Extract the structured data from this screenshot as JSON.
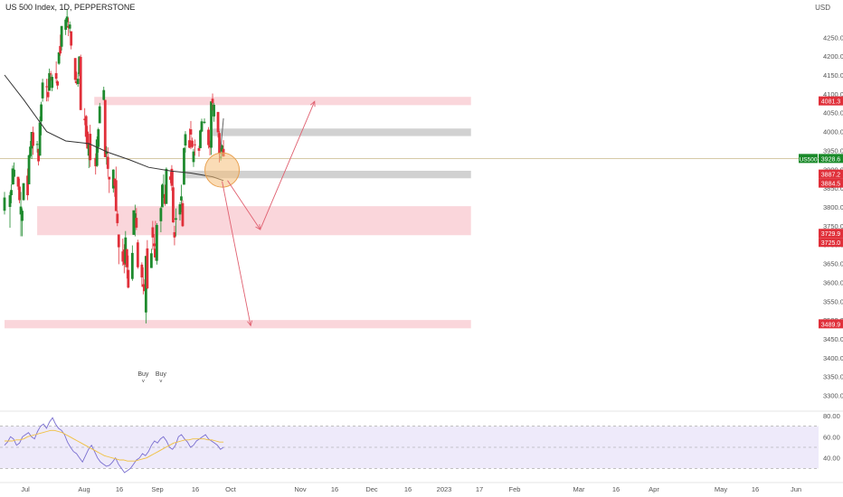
{
  "header": {
    "symbol_title": "US 500 Index, 1D, PEPPERSTONE",
    "currency": "USD"
  },
  "colors": {
    "up": "#1e8a2e",
    "down": "#e0303a",
    "ma": "#333333",
    "zone_red": "#f8c8cf",
    "zone_gray": "#c9c9c9",
    "arrow": "#e06070",
    "circle_fill": "#f5c07a",
    "rsi_line": "#7a6fd0",
    "rsi_ma": "#f0c040",
    "rsi_bg": "#eeeafa",
    "price_line": "#c9b98a",
    "last_label": "#1a8a2a",
    "level_label": "#e0303a"
  },
  "chart_data": {
    "type": "candlestick",
    "y_axis": {
      "min": 3275,
      "max": 4325,
      "ticks": [
        "4250.0",
        "4200.0",
        "4150.0",
        "4100.0",
        "4050.0",
        "4000.0",
        "3950.0",
        "3900.0",
        "3850.0",
        "3800.0",
        "3750.0",
        "3700.0",
        "3650.0",
        "3600.0",
        "3550.0",
        "3500.0",
        "3450.0",
        "3400.0",
        "3350.0",
        "3300.0"
      ]
    },
    "x_axis": {
      "ticks": [
        "Jul",
        "Aug",
        "16",
        "Sep",
        "16",
        "Oct",
        "Nov",
        "16",
        "Dec",
        "16",
        "2023",
        "17",
        "Feb",
        "Mar",
        "16",
        "Apr",
        "May",
        "16",
        "Jun"
      ]
    },
    "candles": [
      [
        "2022-07-01",
        3790,
        3840,
        3780,
        3825
      ],
      [
        "2022-07-05",
        3800,
        3840,
        3745,
        3831
      ],
      [
        "2022-07-06",
        3831,
        3860,
        3810,
        3845
      ],
      [
        "2022-07-07",
        3860,
        3910,
        3858,
        3902
      ],
      [
        "2022-07-08",
        3880,
        3918,
        3860,
        3899
      ],
      [
        "2022-07-11",
        3880,
        3880,
        3845,
        3854
      ],
      [
        "2022-07-12",
        3854,
        3875,
        3810,
        3818
      ],
      [
        "2022-07-13",
        3780,
        3840,
        3722,
        3801
      ],
      [
        "2022-07-14",
        3763,
        3796,
        3722,
        3790
      ],
      [
        "2022-07-15",
        3818,
        3863,
        3817,
        3863
      ],
      [
        "2022-07-18",
        3883,
        3902,
        3818,
        3831
      ],
      [
        "2022-07-19",
        3860,
        3939,
        3860,
        3937
      ],
      [
        "2022-07-20",
        3935,
        3975,
        3930,
        3960
      ],
      [
        "2022-07-21",
        3955,
        3999,
        3927,
        3999
      ],
      [
        "2022-07-22",
        3998,
        4013,
        3938,
        3962
      ],
      [
        "2022-07-25",
        3965,
        3975,
        3944,
        3967
      ],
      [
        "2022-07-26",
        3954,
        3954,
        3910,
        3921
      ],
      [
        "2022-07-27",
        3936,
        4040,
        3936,
        4024
      ],
      [
        "2022-07-28",
        4027,
        4079,
        3990,
        4072
      ],
      [
        "2022-07-29",
        4088,
        4140,
        4079,
        4130
      ],
      [
        "2022-08-01",
        4120,
        4140,
        4080,
        4119
      ],
      [
        "2022-08-02",
        4105,
        4140,
        4080,
        4091
      ],
      [
        "2022-08-03",
        4108,
        4167,
        4108,
        4155
      ],
      [
        "2022-08-04",
        4154,
        4161,
        4135,
        4152
      ],
      [
        "2022-08-05",
        4116,
        4151,
        4107,
        4145
      ],
      [
        "2022-08-08",
        4155,
        4186,
        4128,
        4140
      ],
      [
        "2022-08-09",
        4133,
        4137,
        4112,
        4122
      ],
      [
        "2022-08-10",
        4180,
        4211,
        4177,
        4210
      ],
      [
        "2022-08-11",
        4227,
        4257,
        4201,
        4207
      ],
      [
        "2022-08-12",
        4225,
        4280,
        4215,
        4280
      ],
      [
        "2022-08-15",
        4270,
        4301,
        4256,
        4297
      ],
      [
        "2022-08-16",
        4290,
        4325,
        4277,
        4305
      ],
      [
        "2022-08-17",
        4280,
        4302,
        4253,
        4275
      ],
      [
        "2022-08-18",
        4273,
        4292,
        4262,
        4284
      ],
      [
        "2022-08-19",
        4266,
        4266,
        4218,
        4228
      ],
      [
        "2022-08-22",
        4195,
        4195,
        4129,
        4137
      ],
      [
        "2022-08-23",
        4133,
        4159,
        4124,
        4128
      ],
      [
        "2022-08-24",
        4126,
        4156,
        4119,
        4140
      ],
      [
        "2022-08-25",
        4153,
        4200,
        4147,
        4199
      ],
      [
        "2022-08-26",
        4198,
        4204,
        4057,
        4057
      ],
      [
        "2022-08-29",
        4034,
        4062,
        4017,
        4030
      ],
      [
        "2022-08-30",
        4041,
        4044,
        3965,
        3986
      ],
      [
        "2022-08-31",
        4000,
        4015,
        3954,
        3955
      ],
      [
        "2022-09-01",
        3936,
        3970,
        3903,
        3966
      ],
      [
        "2022-09-02",
        3994,
        4018,
        3906,
        3924
      ],
      [
        "2022-09-06",
        3930,
        3942,
        3886,
        3908
      ],
      [
        "2022-09-07",
        3909,
        3987,
        3906,
        3979
      ],
      [
        "2022-09-08",
        3959,
        4010,
        3944,
        4006
      ],
      [
        "2022-09-09",
        4022,
        4076,
        4022,
        4067
      ],
      [
        "2022-09-12",
        4084,
        4119,
        4083,
        4110
      ],
      [
        "2022-09-13",
        4084,
        4084,
        3932,
        3932
      ],
      [
        "2022-09-14",
        3941,
        3961,
        3912,
        3946
      ],
      [
        "2022-09-15",
        3933,
        3958,
        3880,
        3901
      ],
      [
        "2022-09-16",
        3880,
        3880,
        3837,
        3873
      ],
      [
        "2022-09-19",
        3849,
        3900,
        3838,
        3899
      ],
      [
        "2022-09-20",
        3875,
        3876,
        3827,
        3856
      ],
      [
        "2022-09-21",
        3871,
        3907,
        3789,
        3789
      ],
      [
        "2022-09-22",
        3782,
        3790,
        3749,
        3757
      ],
      [
        "2022-09-23",
        3727,
        3727,
        3648,
        3693
      ],
      [
        "2022-09-26",
        3682,
        3716,
        3644,
        3655
      ],
      [
        "2022-09-27",
        3687,
        3701,
        3624,
        3647
      ],
      [
        "2022-09-28",
        3651,
        3736,
        3640,
        3719
      ],
      [
        "2022-09-29",
        3688,
        3688,
        3610,
        3640
      ],
      [
        "2022-09-30",
        3633,
        3671,
        3584,
        3586
      ],
      [
        "2022-10-03",
        3609,
        3698,
        3604,
        3678
      ],
      [
        "2022-10-04",
        3726,
        3791,
        3726,
        3791
      ],
      [
        "2022-10-05",
        3753,
        3806,
        3722,
        3783
      ],
      [
        "2022-10-06",
        3771,
        3797,
        3739,
        3745
      ],
      [
        "2022-10-07",
        3706,
        3713,
        3636,
        3640
      ],
      [
        "2022-10-10",
        3647,
        3653,
        3588,
        3613
      ],
      [
        "2022-10-11",
        3595,
        3640,
        3568,
        3588
      ],
      [
        "2022-10-12",
        3590,
        3608,
        3576,
        3577
      ],
      [
        "2022-10-13",
        3520,
        3666,
        3491,
        3670
      ],
      [
        "2022-10-14",
        3690,
        3712,
        3582,
        3584
      ],
      [
        "2022-10-17",
        3638,
        3689,
        3638,
        3677
      ],
      [
        "2022-10-18",
        3746,
        3763,
        3686,
        3719
      ],
      [
        "2022-10-19",
        3703,
        3728,
        3666,
        3696
      ],
      [
        "2022-10-20",
        3689,
        3763,
        3657,
        3666
      ],
      [
        "2022-10-21",
        3657,
        3757,
        3647,
        3752
      ],
      [
        "2022-10-24",
        3762,
        3801,
        3733,
        3797
      ],
      [
        "2022-10-25",
        3799,
        3862,
        3799,
        3859
      ],
      [
        "2022-10-26",
        3825,
        3886,
        3824,
        3831
      ],
      [
        "2022-10-27",
        3834,
        3859,
        3803,
        3808
      ],
      [
        "2022-10-28",
        3808,
        3905,
        3808,
        3901
      ],
      [
        "2022-10-31",
        3881,
        3893,
        3863,
        3872
      ],
      [
        "2022-11-01",
        3901,
        3911,
        3843,
        3856
      ],
      [
        "2022-11-02",
        3852,
        3894,
        3758,
        3759
      ],
      [
        "2022-11-03",
        3733,
        3750,
        3698,
        3719
      ],
      [
        "2022-11-04",
        3766,
        3796,
        3722,
        3770
      ],
      [
        "2022-11-07",
        3780,
        3813,
        3764,
        3807
      ],
      [
        "2022-11-08",
        3817,
        3859,
        3786,
        3828
      ],
      [
        "2022-11-09",
        3810,
        3818,
        3747,
        3749
      ],
      [
        "2022-11-10",
        3859,
        3958,
        3859,
        3956
      ],
      [
        "2022-11-11",
        3963,
        4001,
        3944,
        3993
      ],
      [
        "2022-11-14",
        3977,
        4008,
        3956,
        3957
      ],
      [
        "2022-11-15",
        4006,
        4028,
        3953,
        3992
      ],
      [
        "2022-11-16",
        3976,
        3984,
        3956,
        3959
      ],
      [
        "2022-11-17",
        3919,
        3954,
        3906,
        3947
      ],
      [
        "2022-11-18",
        3966,
        3979,
        3936,
        3965
      ],
      [
        "2022-11-21",
        3956,
        3962,
        3933,
        3949
      ],
      [
        "2022-11-22",
        3956,
        4005,
        3956,
        4003
      ],
      [
        "2022-11-23",
        4000,
        4034,
        3998,
        4027
      ],
      [
        "2022-11-25",
        4023,
        4035,
        4020,
        4026
      ],
      [
        "2022-11-28",
        4005,
        4012,
        3955,
        3964
      ],
      [
        "2022-11-29",
        3964,
        3976,
        3937,
        3958
      ],
      [
        "2022-11-30",
        3957,
        4080,
        3938,
        4080
      ],
      [
        "2022-12-01",
        4087,
        4101,
        4056,
        4076
      ],
      [
        "2022-12-02",
        4040,
        4076,
        4026,
        4071
      ],
      [
        "2022-12-05",
        4052,
        4052,
        3984,
        3998
      ],
      [
        "2022-12-06",
        3996,
        4001,
        3918,
        3941
      ],
      [
        "2022-12-07",
        3933,
        3957,
        3923,
        3933
      ],
      [
        "2022-12-08",
        3947,
        3966,
        3935,
        3963
      ],
      [
        "2022-12-09",
        3954,
        3977,
        3933,
        3934
      ]
    ],
    "moving_average": [
      {
        "time": "2022-07-01",
        "value": 4150
      },
      {
        "time": "2022-07-15",
        "value": 4085
      },
      {
        "time": "2022-08-01",
        "value": 4000
      },
      {
        "time": "2022-08-15",
        "value": 3975
      },
      {
        "time": "2022-09-01",
        "value": 3968
      },
      {
        "time": "2022-09-15",
        "value": 3945
      },
      {
        "time": "2022-10-01",
        "value": 3925
      },
      {
        "time": "2022-10-15",
        "value": 3905
      },
      {
        "time": "2022-11-01",
        "value": 3895
      },
      {
        "time": "2022-11-15",
        "value": 3890
      },
      {
        "time": "2022-12-01",
        "value": 3880
      },
      {
        "time": "2022-12-09",
        "value": 3870
      }
    ],
    "zones": [
      {
        "kind": "red",
        "start": "2022-09-05",
        "end": "2023-06-09",
        "low": 4070,
        "high": 4092
      },
      {
        "kind": "gray",
        "start": "2022-12-01",
        "end": "2023-06-09",
        "low": 3988,
        "high": 4008
      },
      {
        "kind": "gray",
        "start": "2022-11-10",
        "end": "2023-06-09",
        "low": 3876,
        "high": 3896
      },
      {
        "kind": "red",
        "start": "2022-07-25",
        "end": "2023-06-09",
        "low": 3725,
        "high": 3802
      },
      {
        "kind": "red",
        "start": "2022-07-01",
        "end": "2023-06-09",
        "low": 3478,
        "high": 3500
      }
    ],
    "arrows": [
      {
        "from": [
          "2022-12-12",
          3870
        ],
        "to": [
          "2023-01-05",
          3740
        ]
      },
      {
        "from": [
          "2023-01-05",
          3740
        ],
        "to": [
          "2023-02-14",
          4080
        ]
      },
      {
        "from": [
          "2022-12-08",
          3868
        ],
        "to": [
          "2022-12-29",
          3485
        ]
      }
    ],
    "highlight_circle": {
      "center": [
        "2022-12-08",
        3898
      ],
      "label": ""
    },
    "trendline": {
      "from": [
        "2022-12-07",
        3956
      ],
      "to": [
        "2022-12-09",
        4035
      ]
    },
    "price_labels": [
      {
        "value": 4081.3,
        "text": "4081.3",
        "color": "red"
      },
      {
        "value": 3928.6,
        "text": "3928.6",
        "color": "green",
        "tag": "US500"
      },
      {
        "value": 3887.2,
        "text": "3887.2",
        "color": "red"
      },
      {
        "value": 3884.5,
        "text": "3884.5",
        "color": "red"
      },
      {
        "value": 3729.9,
        "text": "3729.9",
        "color": "red"
      },
      {
        "value": 3725.0,
        "text": "3725.0",
        "color": "red"
      },
      {
        "value": 3489.9,
        "text": "3489.9",
        "color": "red"
      }
    ],
    "buy_labels": [
      {
        "time": "2022-10-11",
        "text": "Buy"
      },
      {
        "time": "2022-10-24",
        "text": "Buy"
      }
    ],
    "rsi": {
      "ticks": [
        "80.00",
        "60.00",
        "40.00"
      ],
      "levels": [
        70,
        50,
        30
      ],
      "values": [
        52,
        55,
        60,
        58,
        52,
        54,
        60,
        62,
        64,
        60,
        58,
        65,
        70,
        72,
        68,
        74,
        78,
        72,
        68,
        66,
        62,
        55,
        50,
        46,
        44,
        40,
        36,
        42,
        48,
        52,
        46,
        40,
        36,
        34,
        32,
        33,
        36,
        40,
        34,
        30,
        26,
        28,
        30,
        34,
        38,
        40,
        44,
        42,
        46,
        52,
        56,
        54,
        58,
        60,
        56,
        50,
        48,
        52,
        60,
        62,
        58,
        55,
        50,
        52,
        56,
        58,
        60,
        62,
        58,
        56,
        54,
        52,
        48,
        50
      ],
      "ma": [
        56,
        56,
        56,
        57,
        57,
        58,
        60,
        61,
        62,
        63,
        64,
        65,
        66,
        66,
        65,
        64,
        62,
        60,
        58,
        56,
        54,
        52,
        50,
        48,
        46,
        44,
        42,
        41,
        40,
        39,
        38,
        38,
        37,
        37,
        37,
        38,
        39,
        40,
        42,
        44,
        46,
        48,
        50,
        52,
        54,
        55,
        56,
        57,
        57,
        58,
        58,
        58,
        58,
        57,
        57,
        56,
        55,
        55
      ]
    }
  }
}
